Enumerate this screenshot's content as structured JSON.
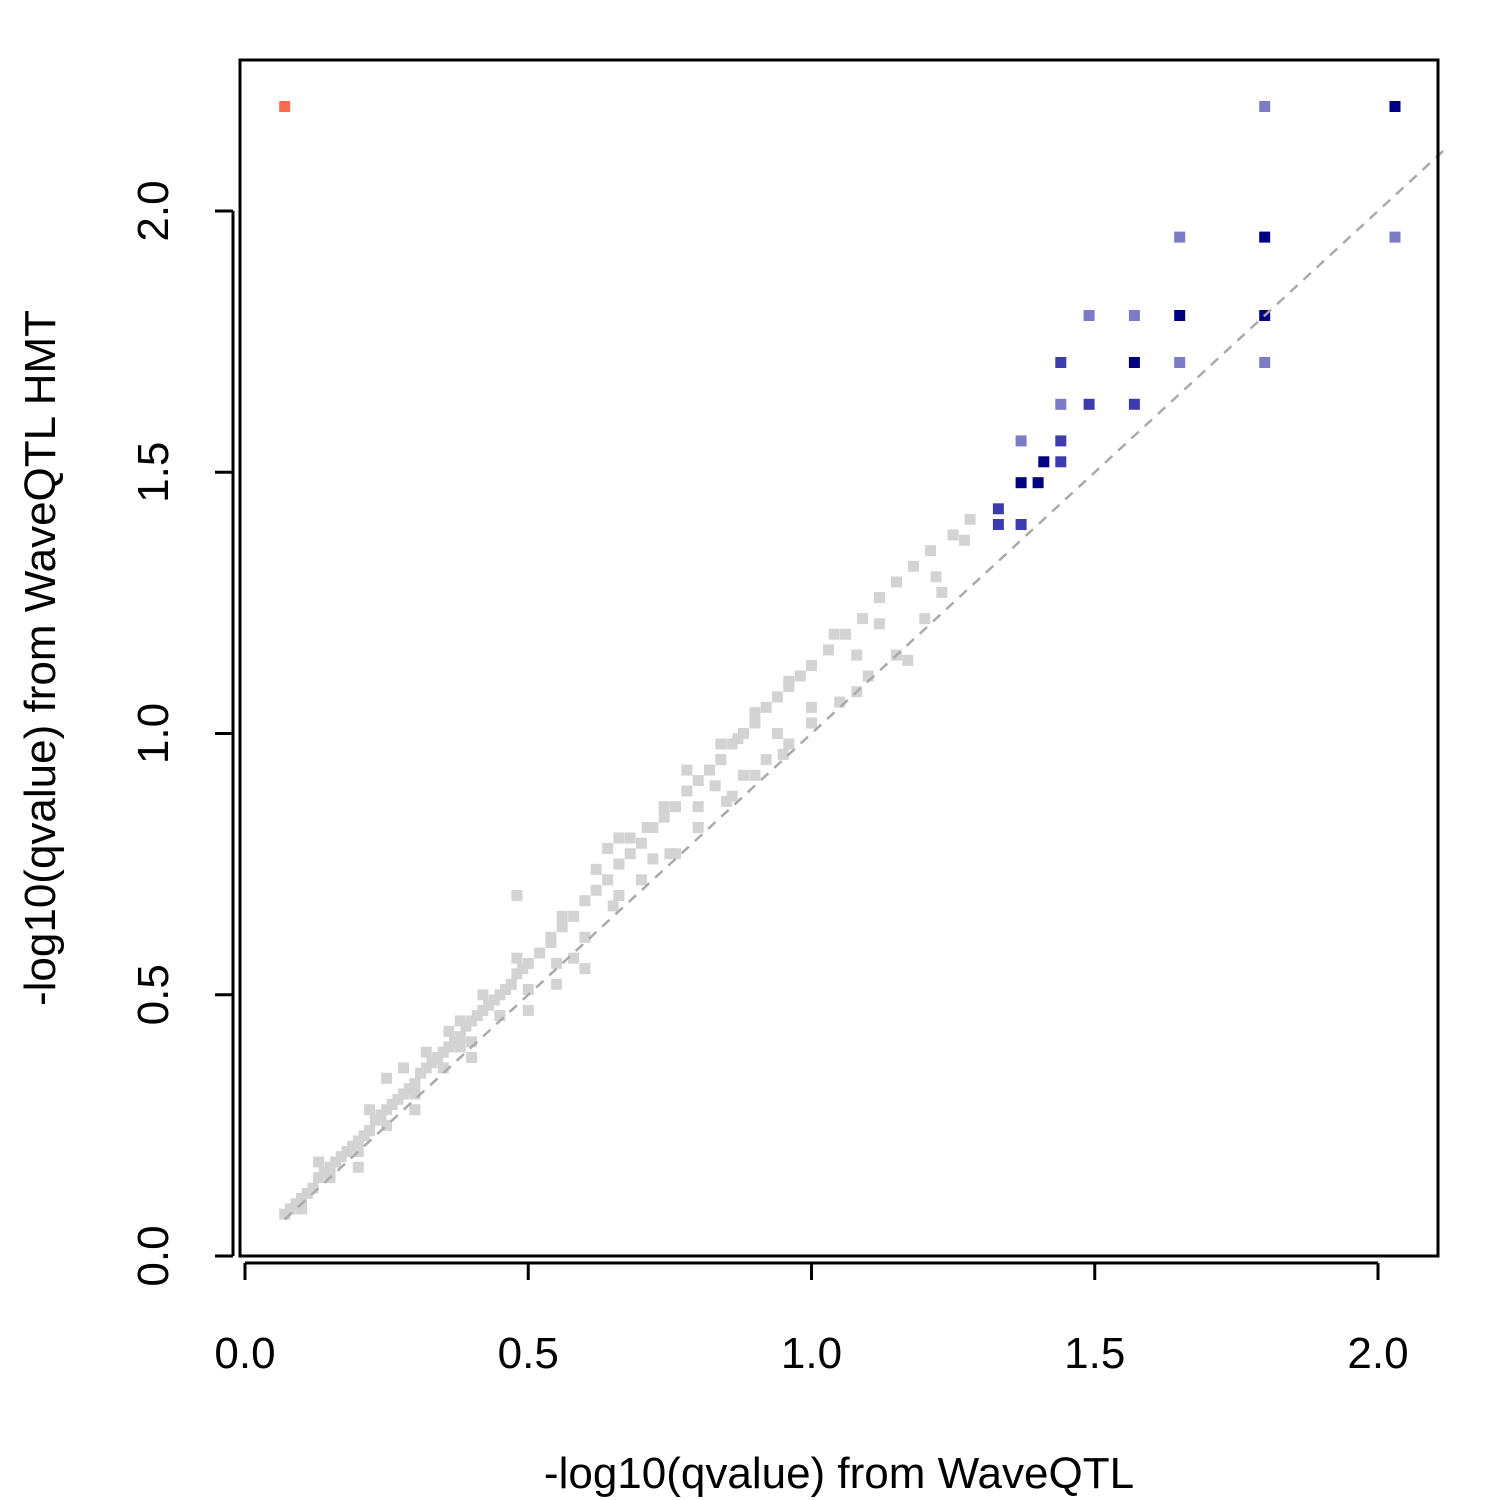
{
  "chart_data": {
    "type": "scatter",
    "title": "",
    "xlabel": "-log10(qvalue) from WaveQTL",
    "ylabel": "-log10(qvalue) from WaveQTL HMT",
    "xlim": [
      0.0,
      2.1
    ],
    "ylim": [
      0.0,
      2.2
    ],
    "xticks": [
      "0.0",
      "0.5",
      "1.0",
      "1.5",
      "2.0"
    ],
    "yticks": [
      "0.0",
      "0.5",
      "1.0",
      "1.5",
      "2.0"
    ],
    "grid": false,
    "reference_line": {
      "type": "y = x",
      "style": "dashed",
      "color": "#aaaaaa"
    },
    "colors": {
      "bulk": "#d3d3d3",
      "highlight_dark": "#000080",
      "highlight_mid": "#3c3cae",
      "highlight_light": "#7b7bc6",
      "outlier": "#fa6a4f"
    },
    "series": [
      {
        "group": "bulk",
        "color": "#d3d3d3",
        "points": [
          [
            0.07,
            0.08
          ],
          [
            0.08,
            0.09
          ],
          [
            0.09,
            0.1
          ],
          [
            0.1,
            0.11
          ],
          [
            0.11,
            0.12
          ],
          [
            0.12,
            0.13
          ],
          [
            0.13,
            0.15
          ],
          [
            0.14,
            0.16
          ],
          [
            0.15,
            0.17
          ],
          [
            0.16,
            0.18
          ],
          [
            0.17,
            0.19
          ],
          [
            0.18,
            0.2
          ],
          [
            0.19,
            0.21
          ],
          [
            0.2,
            0.22
          ],
          [
            0.21,
            0.23
          ],
          [
            0.22,
            0.24
          ],
          [
            0.23,
            0.26
          ],
          [
            0.24,
            0.27
          ],
          [
            0.25,
            0.28
          ],
          [
            0.26,
            0.29
          ],
          [
            0.27,
            0.3
          ],
          [
            0.28,
            0.31
          ],
          [
            0.29,
            0.32
          ],
          [
            0.3,
            0.33
          ],
          [
            0.31,
            0.35
          ],
          [
            0.32,
            0.36
          ],
          [
            0.33,
            0.37
          ],
          [
            0.34,
            0.38
          ],
          [
            0.35,
            0.39
          ],
          [
            0.36,
            0.4
          ],
          [
            0.37,
            0.41
          ],
          [
            0.38,
            0.42
          ],
          [
            0.39,
            0.44
          ],
          [
            0.4,
            0.45
          ],
          [
            0.41,
            0.46
          ],
          [
            0.42,
            0.47
          ],
          [
            0.43,
            0.48
          ],
          [
            0.44,
            0.49
          ],
          [
            0.45,
            0.5
          ],
          [
            0.46,
            0.51
          ],
          [
            0.47,
            0.52
          ],
          [
            0.48,
            0.54
          ],
          [
            0.49,
            0.55
          ],
          [
            0.5,
            0.56
          ],
          [
            0.52,
            0.58
          ],
          [
            0.54,
            0.61
          ],
          [
            0.56,
            0.63
          ],
          [
            0.58,
            0.65
          ],
          [
            0.6,
            0.68
          ],
          [
            0.62,
            0.7
          ],
          [
            0.64,
            0.72
          ],
          [
            0.66,
            0.75
          ],
          [
            0.68,
            0.77
          ],
          [
            0.7,
            0.79
          ],
          [
            0.72,
            0.82
          ],
          [
            0.74,
            0.84
          ],
          [
            0.76,
            0.86
          ],
          [
            0.78,
            0.89
          ],
          [
            0.8,
            0.91
          ],
          [
            0.82,
            0.93
          ],
          [
            0.84,
            0.95
          ],
          [
            0.86,
            0.98
          ],
          [
            0.88,
            1.0
          ],
          [
            0.9,
            1.02
          ],
          [
            0.92,
            1.05
          ],
          [
            0.94,
            1.07
          ],
          [
            0.96,
            1.09
          ],
          [
            0.98,
            1.11
          ],
          [
            1.0,
            1.13
          ],
          [
            1.03,
            1.16
          ],
          [
            1.06,
            1.19
          ],
          [
            1.09,
            1.22
          ],
          [
            1.12,
            1.26
          ],
          [
            1.15,
            1.29
          ],
          [
            1.18,
            1.32
          ],
          [
            1.21,
            1.35
          ],
          [
            1.25,
            1.38
          ],
          [
            1.28,
            1.41
          ],
          [
            0.1,
            0.09
          ],
          [
            0.15,
            0.15
          ],
          [
            0.2,
            0.2
          ],
          [
            0.25,
            0.25
          ],
          [
            0.3,
            0.31
          ],
          [
            0.35,
            0.36
          ],
          [
            0.4,
            0.41
          ],
          [
            0.45,
            0.46
          ],
          [
            0.5,
            0.51
          ],
          [
            0.55,
            0.56
          ],
          [
            0.6,
            0.61
          ],
          [
            0.65,
            0.67
          ],
          [
            0.7,
            0.72
          ],
          [
            0.75,
            0.77
          ],
          [
            0.8,
            0.82
          ],
          [
            0.85,
            0.87
          ],
          [
            0.9,
            0.92
          ],
          [
            0.95,
            0.96
          ],
          [
            1.0,
            1.02
          ],
          [
            1.05,
            1.06
          ],
          [
            1.1,
            1.11
          ],
          [
            1.15,
            1.15
          ],
          [
            1.2,
            1.22
          ],
          [
            1.23,
            1.27
          ],
          [
            0.13,
            0.18
          ],
          [
            0.22,
            0.28
          ],
          [
            0.28,
            0.36
          ],
          [
            0.36,
            0.43
          ],
          [
            0.42,
            0.5
          ],
          [
            0.48,
            0.57
          ],
          [
            0.56,
            0.65
          ],
          [
            0.62,
            0.74
          ],
          [
            0.68,
            0.8
          ],
          [
            0.74,
            0.86
          ],
          [
            0.84,
            0.98
          ],
          [
            0.9,
            1.04
          ],
          [
            0.96,
            1.1
          ],
          [
            1.04,
            1.19
          ],
          [
            1.12,
            1.21
          ],
          [
            0.3,
            0.28
          ],
          [
            0.4,
            0.38
          ],
          [
            0.5,
            0.47
          ],
          [
            0.58,
            0.57
          ],
          [
            0.66,
            0.69
          ],
          [
            0.76,
            0.77
          ],
          [
            0.86,
            0.88
          ],
          [
            0.96,
            0.98
          ],
          [
            1.08,
            1.08
          ],
          [
            1.17,
            1.14
          ],
          [
            0.25,
            0.34
          ],
          [
            0.38,
            0.4
          ],
          [
            0.54,
            0.6
          ],
          [
            0.64,
            0.78
          ],
          [
            0.72,
            0.76
          ],
          [
            0.8,
            0.86
          ],
          [
            0.88,
            0.92
          ],
          [
            1.0,
            1.05
          ],
          [
            1.22,
            1.3
          ],
          [
            1.27,
            1.37
          ],
          [
            0.48,
            0.69
          ],
          [
            0.38,
            0.45
          ],
          [
            0.32,
            0.39
          ],
          [
            0.2,
            0.17
          ],
          [
            0.55,
            0.52
          ],
          [
            0.6,
            0.55
          ],
          [
            0.83,
            0.9
          ],
          [
            0.94,
            1.0
          ],
          [
            1.08,
            1.15
          ],
          [
            0.66,
            0.8
          ],
          [
            0.71,
            0.82
          ],
          [
            0.78,
            0.93
          ],
          [
            0.87,
            0.99
          ],
          [
            0.92,
            0.95
          ]
        ]
      },
      {
        "group": "highlight_dark",
        "color": "#000080",
        "points": [
          [
            2.03,
            2.2
          ],
          [
            1.8,
            1.95
          ],
          [
            1.65,
            1.8
          ],
          [
            1.8,
            1.8
          ],
          [
            1.57,
            1.71
          ],
          [
            1.37,
            1.48
          ],
          [
            1.41,
            1.52
          ],
          [
            1.4,
            1.48
          ]
        ]
      },
      {
        "group": "highlight_mid",
        "color": "#3c3cae",
        "points": [
          [
            1.44,
            1.71
          ],
          [
            1.49,
            1.63
          ],
          [
            1.57,
            1.63
          ],
          [
            1.44,
            1.56
          ],
          [
            1.44,
            1.52
          ],
          [
            1.33,
            1.43
          ],
          [
            1.33,
            1.4
          ],
          [
            1.37,
            1.4
          ]
        ]
      },
      {
        "group": "highlight_light",
        "color": "#7b7bc6",
        "points": [
          [
            1.8,
            2.2
          ],
          [
            1.65,
            1.95
          ],
          [
            2.03,
            1.95
          ],
          [
            1.49,
            1.8
          ],
          [
            1.57,
            1.8
          ],
          [
            1.65,
            1.71
          ],
          [
            1.8,
            1.71
          ],
          [
            1.44,
            1.63
          ],
          [
            1.37,
            1.56
          ]
        ]
      },
      {
        "group": "outlier",
        "color": "#fa6a4f",
        "points": [
          [
            0.07,
            2.2
          ]
        ]
      }
    ]
  }
}
